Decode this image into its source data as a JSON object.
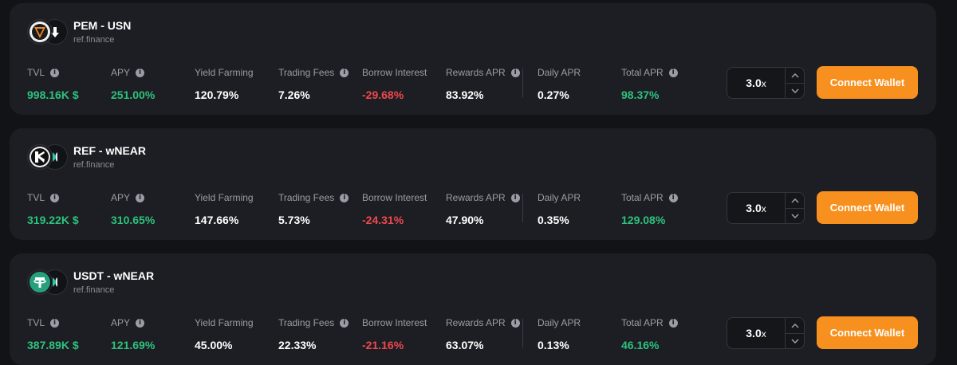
{
  "labels": {
    "tvl": "TVL",
    "apy": "APY",
    "yield_farming": "Yield Farming",
    "trading_fees": "Trading Fees",
    "borrow_interest": "Borrow Interest",
    "rewards_apr": "Rewards APR",
    "daily_apr": "Daily APR",
    "total_apr": "Total APR"
  },
  "colors": {
    "positive": "#2ec27e",
    "negative": "#f0484e",
    "accent": "#f7901e"
  },
  "pools": [
    {
      "title": "PEM - USN",
      "source": "ref.finance",
      "token_icons": [
        "pem-token-icon",
        "usn-token-icon"
      ],
      "tvl": "998.16K $",
      "apy": "251.00%",
      "yield_farming": "120.79%",
      "trading_fees": "7.26%",
      "borrow_interest": "-29.68%",
      "rewards_apr": "83.92%",
      "daily_apr": "0.27%",
      "total_apr": "98.37%",
      "leverage": "3.0",
      "leverage_suffix": "x",
      "button_label": "Connect Wallet"
    },
    {
      "title": "REF - wNEAR",
      "source": "ref.finance",
      "token_icons": [
        "ref-token-icon",
        "wnear-token-icon"
      ],
      "tvl": "319.22K $",
      "apy": "310.65%",
      "yield_farming": "147.66%",
      "trading_fees": "5.73%",
      "borrow_interest": "-24.31%",
      "rewards_apr": "47.90%",
      "daily_apr": "0.35%",
      "total_apr": "129.08%",
      "leverage": "3.0",
      "leverage_suffix": "x",
      "button_label": "Connect Wallet"
    },
    {
      "title": "USDT - wNEAR",
      "source": "ref.finance",
      "token_icons": [
        "usdt-token-icon",
        "wnear-token-icon"
      ],
      "tvl": "387.89K $",
      "apy": "121.69%",
      "yield_farming": "45.00%",
      "trading_fees": "22.33%",
      "borrow_interest": "-21.16%",
      "rewards_apr": "63.07%",
      "daily_apr": "0.13%",
      "total_apr": "46.16%",
      "leverage": "3.0",
      "leverage_suffix": "x",
      "button_label": "Connect Wallet"
    }
  ]
}
